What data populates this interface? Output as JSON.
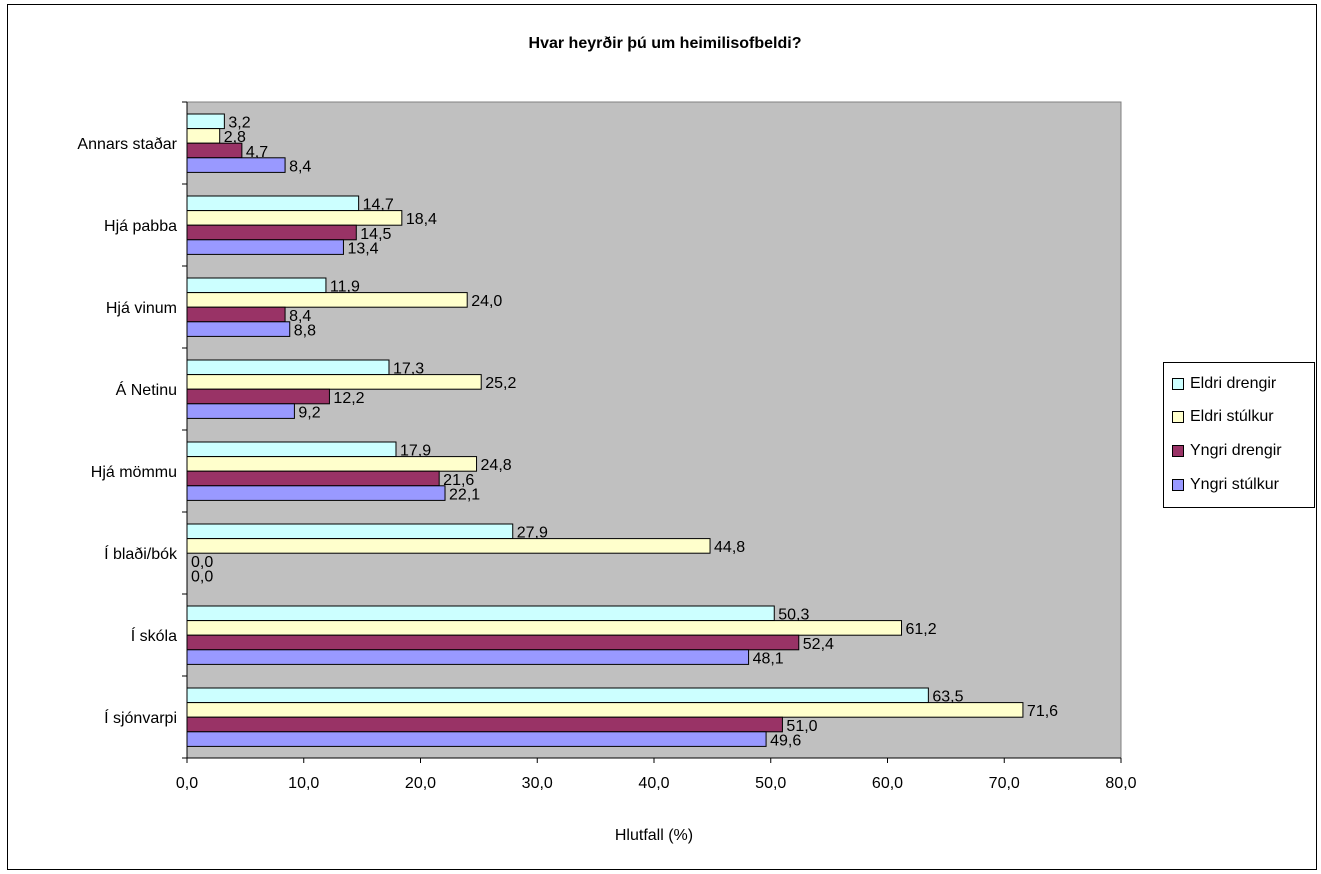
{
  "chart_data": {
    "type": "bar",
    "orientation": "horizontal",
    "title": "Hvar heyrðir þú um heimilisofbeldi?",
    "xlabel": "Hlutfall (%)",
    "ylabel": "",
    "xlim": [
      0,
      80
    ],
    "xticks": [
      "0,0",
      "10,0",
      "20,0",
      "30,0",
      "40,0",
      "50,0",
      "60,0",
      "70,0",
      "80,0"
    ],
    "grid": false,
    "plot_background": "#c0c0c0",
    "legend_position": "right",
    "categories": [
      "Annars staðar",
      "Hjá pabba",
      "Hjá vinum",
      "Á Netinu",
      "Hjá mömmu",
      "Í blaði/bók",
      "Í skóla",
      "Í sjónvarpi"
    ],
    "series": [
      {
        "name": "Eldri drengir",
        "color": "#ccffff",
        "values": [
          3.2,
          14.7,
          11.9,
          17.3,
          17.9,
          27.9,
          50.3,
          63.5
        ],
        "labels": [
          "3,2",
          "14,7",
          "11,9",
          "17,3",
          "17,9",
          "27,9",
          "50,3",
          "63,5"
        ]
      },
      {
        "name": "Eldri stúlkur",
        "color": "#ffffcc",
        "values": [
          2.8,
          18.4,
          24.0,
          25.2,
          24.8,
          44.8,
          61.2,
          71.6
        ],
        "labels": [
          "2,8",
          "18,4",
          "24,0",
          "25,2",
          "24,8",
          "44,8",
          "61,2",
          "71,6"
        ]
      },
      {
        "name": "Yngri drengir",
        "color": "#993366",
        "values": [
          4.7,
          14.5,
          8.4,
          12.2,
          21.6,
          0.0,
          52.4,
          51.0
        ],
        "labels": [
          "4,7",
          "14,5",
          "8,4",
          "12,2",
          "21,6",
          "0,0",
          "52,4",
          "51,0"
        ]
      },
      {
        "name": "Yngri stúlkur",
        "color": "#9999ff",
        "values": [
          8.4,
          13.4,
          8.8,
          9.2,
          22.1,
          0.0,
          48.1,
          49.6
        ],
        "labels": [
          "8,4",
          "13,4",
          "8,8",
          "9,2",
          "22,1",
          "0,0",
          "48,1",
          "49,6"
        ]
      }
    ]
  }
}
